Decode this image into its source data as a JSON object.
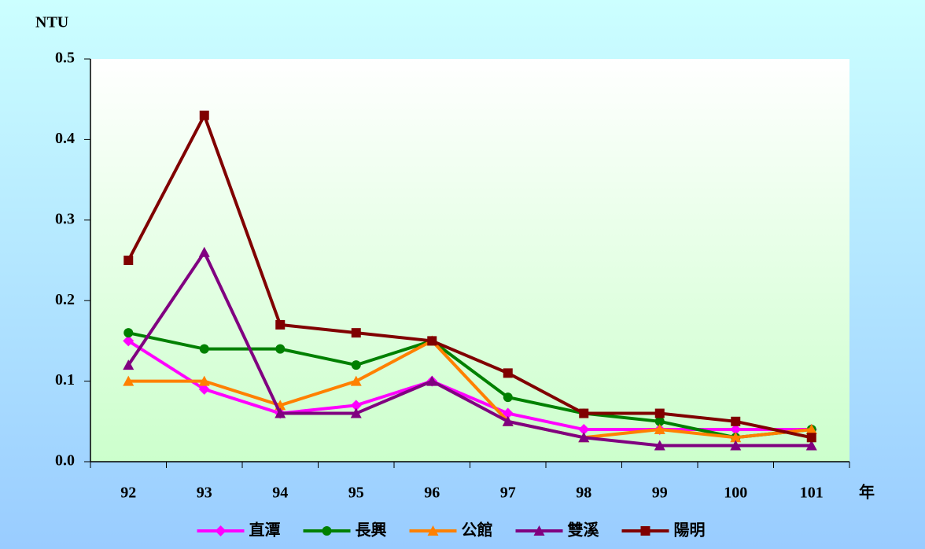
{
  "chart_data": {
    "type": "line",
    "y_label": "NTU",
    "x_label": "年",
    "categories": [
      "92",
      "93",
      "94",
      "95",
      "96",
      "97",
      "98",
      "99",
      "100",
      "101"
    ],
    "series": [
      {
        "name": "直潭",
        "color": "#ff00ff",
        "marker": "diamond",
        "values": [
          0.15,
          0.09,
          0.06,
          0.07,
          0.1,
          0.06,
          0.04,
          0.04,
          0.04,
          0.04
        ]
      },
      {
        "name": "長興",
        "color": "#008000",
        "marker": "circle",
        "values": [
          0.16,
          0.14,
          0.14,
          0.12,
          0.15,
          0.08,
          0.06,
          0.05,
          0.03,
          0.04
        ]
      },
      {
        "name": "公館",
        "color": "#ff8000",
        "marker": "triangle",
        "values": [
          0.1,
          0.1,
          0.07,
          0.1,
          0.15,
          0.05,
          0.03,
          0.04,
          0.03,
          0.04
        ]
      },
      {
        "name": "雙溪",
        "color": "#800080",
        "marker": "triangle",
        "values": [
          0.12,
          0.26,
          0.06,
          0.06,
          0.1,
          0.05,
          0.03,
          0.02,
          0.02,
          0.02
        ]
      },
      {
        "name": "陽明",
        "color": "#800000",
        "marker": "square",
        "values": [
          0.25,
          0.43,
          0.17,
          0.16,
          0.15,
          0.11,
          0.06,
          0.06,
          0.05,
          0.03
        ]
      }
    ],
    "ylim": [
      0,
      0.5
    ],
    "yticks": [
      {
        "value": 0,
        "label": "0.0"
      },
      0.1,
      0.2,
      0.3,
      0.4,
      0.5
    ],
    "legend": "bottom"
  }
}
